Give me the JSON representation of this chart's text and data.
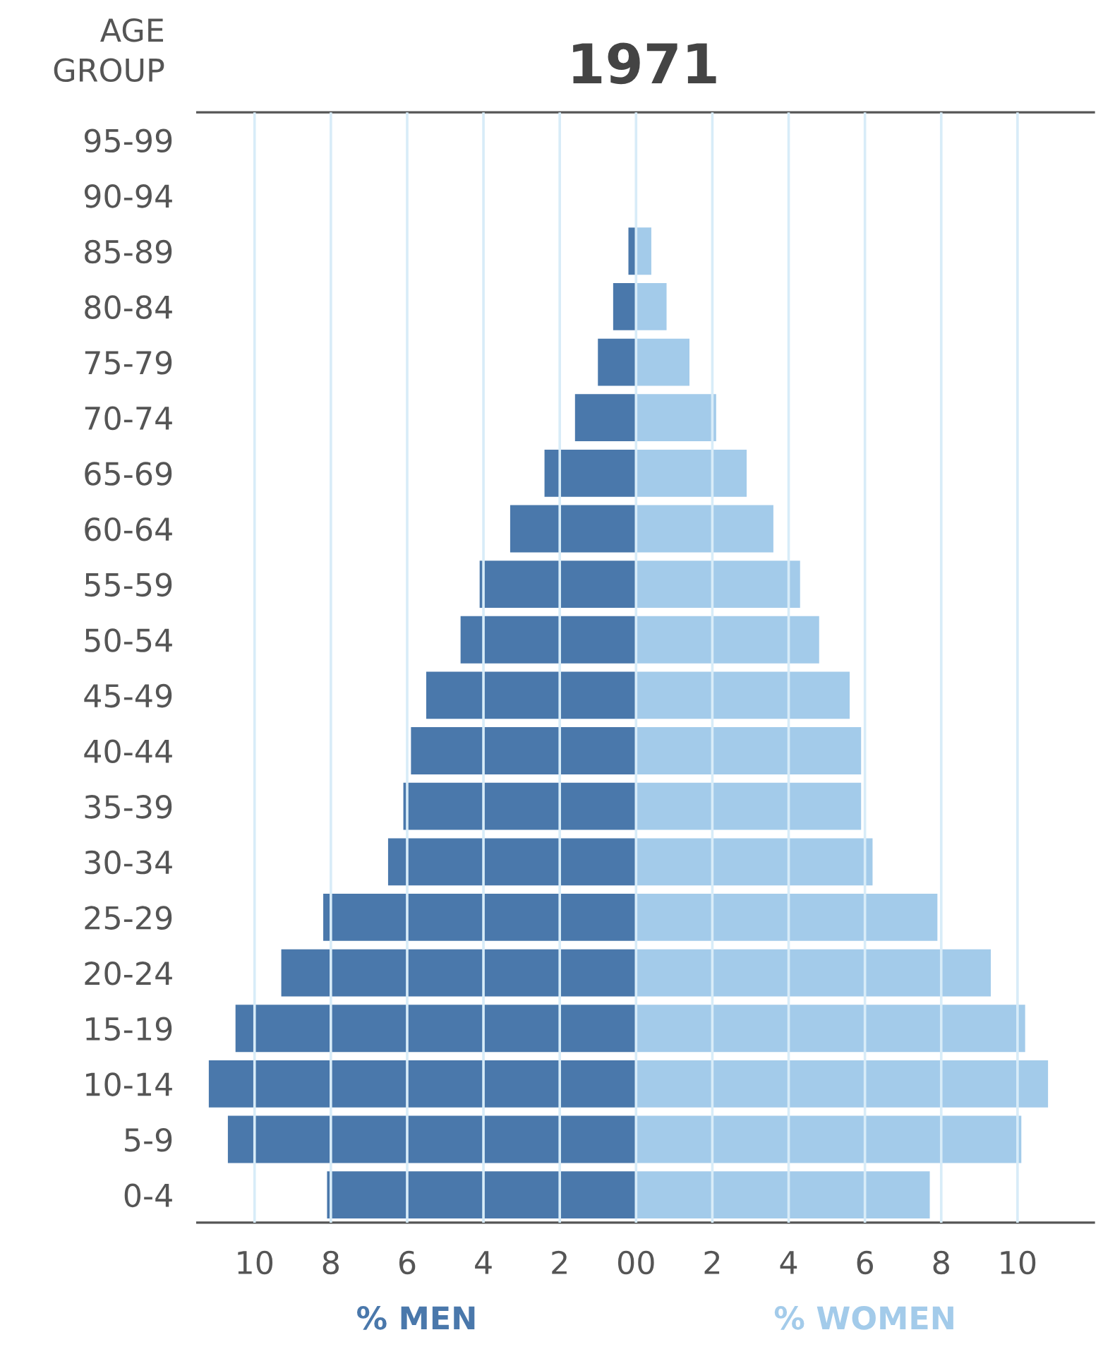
{
  "chart_data": {
    "type": "bar",
    "orientation": "horizontal",
    "title": "1971",
    "ylabel": "AGE GROUP",
    "categories": [
      "95-99",
      "90-94",
      "85-89",
      "80-84",
      "75-79",
      "70-74",
      "65-69",
      "60-64",
      "55-59",
      "50-54",
      "45-49",
      "40-44",
      "35-39",
      "30-34",
      "25-29",
      "20-24",
      "15-19",
      "10-14",
      "5-9",
      "0-4"
    ],
    "series": [
      {
        "name": "% MEN",
        "color": "#4a78ab",
        "values": [
          0,
          0,
          -0.2,
          -0.6,
          -1.0,
          -1.6,
          -2.4,
          -3.3,
          -4.1,
          -4.6,
          -5.5,
          -5.9,
          -6.1,
          -6.5,
          -8.2,
          -9.3,
          -10.5,
          -11.2,
          -10.7,
          -8.1
        ]
      },
      {
        "name": "% WOMEN",
        "color": "#a3cbea",
        "values": [
          0,
          0,
          0.4,
          0.8,
          1.4,
          2.1,
          2.9,
          3.6,
          4.3,
          4.8,
          5.6,
          5.9,
          5.9,
          6.2,
          7.9,
          9.3,
          10.2,
          10.8,
          10.1,
          7.7
        ]
      }
    ],
    "xlim": [
      -11.5,
      12
    ],
    "xticks": [
      {
        "value": -10,
        "label": "10"
      },
      {
        "value": -8,
        "label": "8"
      },
      {
        "value": -6,
        "label": "6"
      },
      {
        "value": -4,
        "label": "4"
      },
      {
        "value": -2,
        "label": "2"
      },
      {
        "value": 0,
        "label": "00"
      },
      2,
      4,
      6,
      8,
      10
    ],
    "grid": "x",
    "stacked": true
  }
}
